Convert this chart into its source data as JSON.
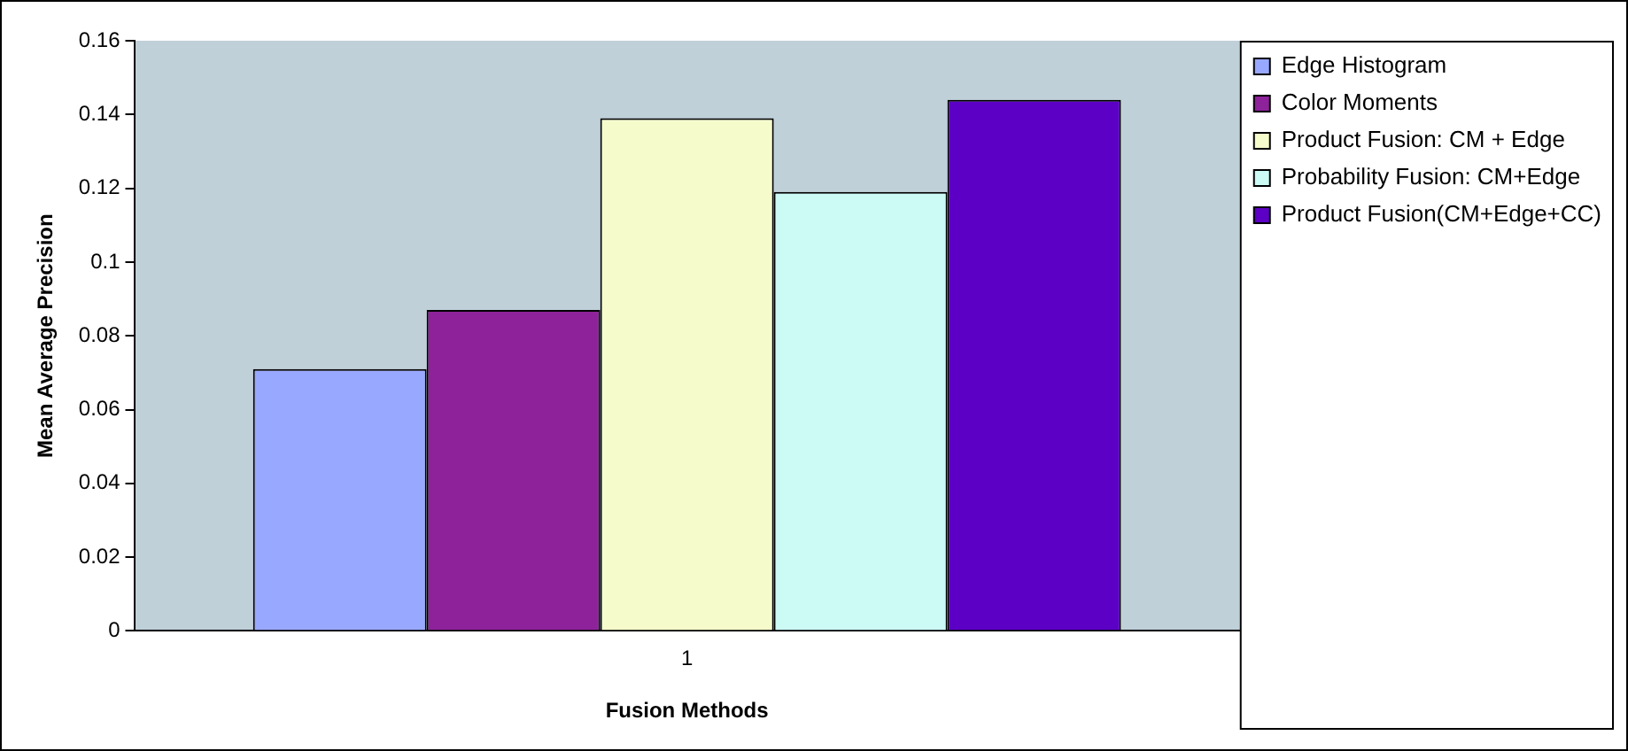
{
  "chart_data": {
    "type": "bar",
    "xlabel": "Fusion Methods",
    "ylabel": "Mean Average Precision",
    "categories": [
      "1"
    ],
    "series": [
      {
        "name": "Edge Histogram",
        "color": "#99a8ff",
        "values": [
          0.071
        ]
      },
      {
        "name": "Color Moments",
        "color": "#8e229a",
        "values": [
          0.087
        ]
      },
      {
        "name": "Product Fusion: CM + Edge",
        "color": "#f5fbca",
        "values": [
          0.139
        ]
      },
      {
        "name": "Probability Fusion: CM+Edge",
        "color": "#ccfaf5",
        "values": [
          0.119
        ]
      },
      {
        "name": "Product Fusion(CM+Edge+CC)",
        "color": "#5c00c6",
        "values": [
          0.144
        ]
      }
    ],
    "ylim": [
      0,
      0.16
    ],
    "yticks": [
      0,
      0.02,
      0.04,
      0.06,
      0.08,
      0.1,
      0.12,
      0.14,
      0.16
    ],
    "grid": false,
    "legend": "right"
  }
}
